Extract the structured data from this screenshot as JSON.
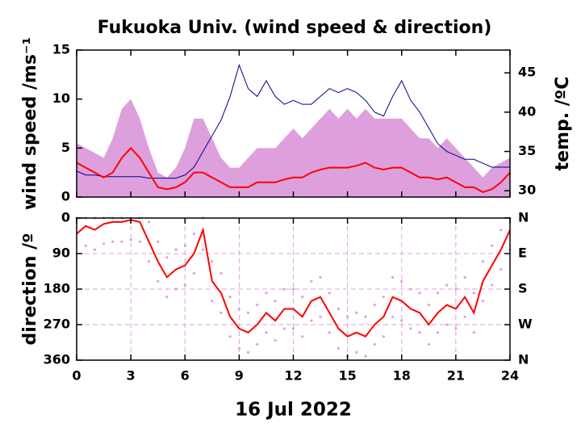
{
  "chart_data": [
    {
      "type": "line",
      "title": "Fukuoka Univ. (wind speed & direction)",
      "ylabel": "wind speed /ms⁻¹",
      "y2label": "temp. /ºC",
      "x": [
        0,
        0.5,
        1,
        1.5,
        2,
        2.5,
        3,
        3.5,
        4,
        4.5,
        5,
        5.5,
        6,
        6.5,
        7,
        7.5,
        8,
        8.5,
        9,
        9.5,
        10,
        10.5,
        11,
        11.5,
        12,
        12.5,
        13,
        13.5,
        14,
        14.5,
        15,
        15.5,
        16,
        16.5,
        17,
        17.5,
        18,
        18.5,
        19,
        19.5,
        20,
        20.5,
        21,
        21.5,
        22,
        22.5,
        23,
        23.5,
        24
      ],
      "xlim": [
        0,
        24
      ],
      "xticks": [
        0,
        3,
        6,
        9,
        12,
        15,
        18,
        21,
        24
      ],
      "show_xtick_labels": false,
      "ylim": [
        0,
        15
      ],
      "yticks": [
        0,
        5,
        10,
        15
      ],
      "y2lim": [
        29.2,
        47.9
      ],
      "y2ticks": [
        30,
        35,
        40,
        45
      ],
      "ylabel_color": "#ff0000",
      "y2label_color": "#00008b",
      "grid": false,
      "series": [
        {
          "style": "area",
          "color": "#dda0dd",
          "values": [
            5.5,
            5,
            4.5,
            4,
            6,
            9,
            10,
            8,
            5,
            2.5,
            2,
            3,
            5,
            8,
            8,
            6,
            4,
            3,
            3,
            4,
            5,
            5,
            5,
            6,
            7,
            6,
            7,
            8,
            9,
            8,
            9,
            8,
            9,
            8,
            8,
            8,
            8,
            7,
            6,
            6,
            5,
            6,
            5,
            4,
            3,
            2,
            3,
            3.5,
            4
          ]
        },
        {
          "style": "line",
          "color": "#00008b",
          "axis": "y2",
          "values": [
            32.5,
            32,
            32,
            31.8,
            31.8,
            31.8,
            31.8,
            31.8,
            31.6,
            31.6,
            31.6,
            31.6,
            32,
            33,
            35,
            37,
            39,
            42,
            46,
            43,
            42,
            44,
            42,
            41,
            41.5,
            41,
            41,
            42,
            43,
            42.5,
            43,
            42.5,
            41.5,
            40,
            39.5,
            42,
            44,
            41.5,
            40,
            38,
            36,
            35,
            34.5,
            34,
            34,
            33.5,
            33,
            33,
            33
          ]
        },
        {
          "style": "line",
          "color": "#ff0000",
          "width": 2,
          "values": [
            3.5,
            3,
            2.5,
            2,
            2.5,
            4,
            5,
            4,
            2.5,
            1,
            0.8,
            1,
            1.5,
            2.5,
            2.5,
            2,
            1.5,
            1,
            1,
            1,
            1.5,
            1.5,
            1.5,
            1.8,
            2,
            2,
            2.5,
            2.8,
            3,
            3,
            3,
            3.2,
            3.5,
            3,
            2.8,
            3,
            3,
            2.5,
            2,
            2,
            1.8,
            2,
            1.5,
            1,
            1,
            0.5,
            0.8,
            1.5,
            2.5
          ]
        }
      ]
    },
    {
      "type": "scatter",
      "ylabel": "direction /º",
      "xlabel": "16 Jul 2022",
      "x": [
        0,
        0.5,
        1,
        1.5,
        2,
        2.5,
        3,
        3.5,
        4,
        4.5,
        5,
        5.5,
        6,
        6.5,
        7,
        7.5,
        8,
        8.5,
        9,
        9.5,
        10,
        10.5,
        11,
        11.5,
        12,
        12.5,
        13,
        13.5,
        14,
        14.5,
        15,
        15.5,
        16,
        16.5,
        17,
        17.5,
        18,
        18.5,
        19,
        19.5,
        20,
        20.5,
        21,
        21.5,
        22,
        22.5,
        23,
        23.5,
        24
      ],
      "xlim": [
        0,
        24
      ],
      "xticks": [
        0,
        3,
        6,
        9,
        12,
        15,
        18,
        21,
        24
      ],
      "show_xtick_labels": true,
      "ylim": [
        360,
        0
      ],
      "yticks": [
        0,
        90,
        180,
        270,
        360
      ],
      "y2lim": [
        360,
        0
      ],
      "y2ticks": [
        {
          "value": 0,
          "label": "N"
        },
        {
          "value": 90,
          "label": "E"
        },
        {
          "value": 180,
          "label": "S"
        },
        {
          "value": 270,
          "label": "W"
        },
        {
          "value": 360,
          "label": "N"
        }
      ],
      "ylabel_color": "#ff0000",
      "grid": true,
      "grid_color": "#dda0dd",
      "series": [
        {
          "style": "dots",
          "color": "#dda0dd",
          "values": [
            90,
            70,
            80,
            65,
            60,
            60,
            55,
            60,
            110,
            160,
            200,
            180,
            170,
            140,
            80,
            210,
            240,
            300,
            330,
            340,
            320,
            290,
            310,
            280,
            280,
            300,
            260,
            250,
            290,
            330,
            350,
            340,
            350,
            320,
            300,
            250,
            260,
            280,
            290,
            320,
            290,
            270,
            280,
            250,
            290,
            210,
            170,
            130,
            80
          ]
        },
        {
          "style": "dots",
          "color": "#dda0dd",
          "values": [
            0,
            0,
            0,
            0,
            0,
            0,
            0,
            0,
            10,
            60,
            100,
            80,
            70,
            40,
            0,
            110,
            140,
            200,
            230,
            240,
            220,
            190,
            210,
            180,
            180,
            200,
            160,
            150,
            190,
            230,
            250,
            240,
            250,
            220,
            200,
            150,
            160,
            180,
            190,
            220,
            190,
            170,
            180,
            150,
            190,
            110,
            70,
            30,
            0
          ]
        },
        {
          "style": "line",
          "color": "#ff0000",
          "width": 2,
          "values": [
            40,
            20,
            30,
            15,
            10,
            10,
            5,
            10,
            60,
            110,
            150,
            130,
            120,
            90,
            30,
            160,
            190,
            250,
            280,
            290,
            270,
            240,
            260,
            230,
            230,
            250,
            210,
            200,
            240,
            280,
            300,
            290,
            300,
            270,
            250,
            200,
            210,
            230,
            240,
            270,
            240,
            220,
            230,
            200,
            240,
            160,
            120,
            80,
            30
          ]
        }
      ]
    }
  ]
}
